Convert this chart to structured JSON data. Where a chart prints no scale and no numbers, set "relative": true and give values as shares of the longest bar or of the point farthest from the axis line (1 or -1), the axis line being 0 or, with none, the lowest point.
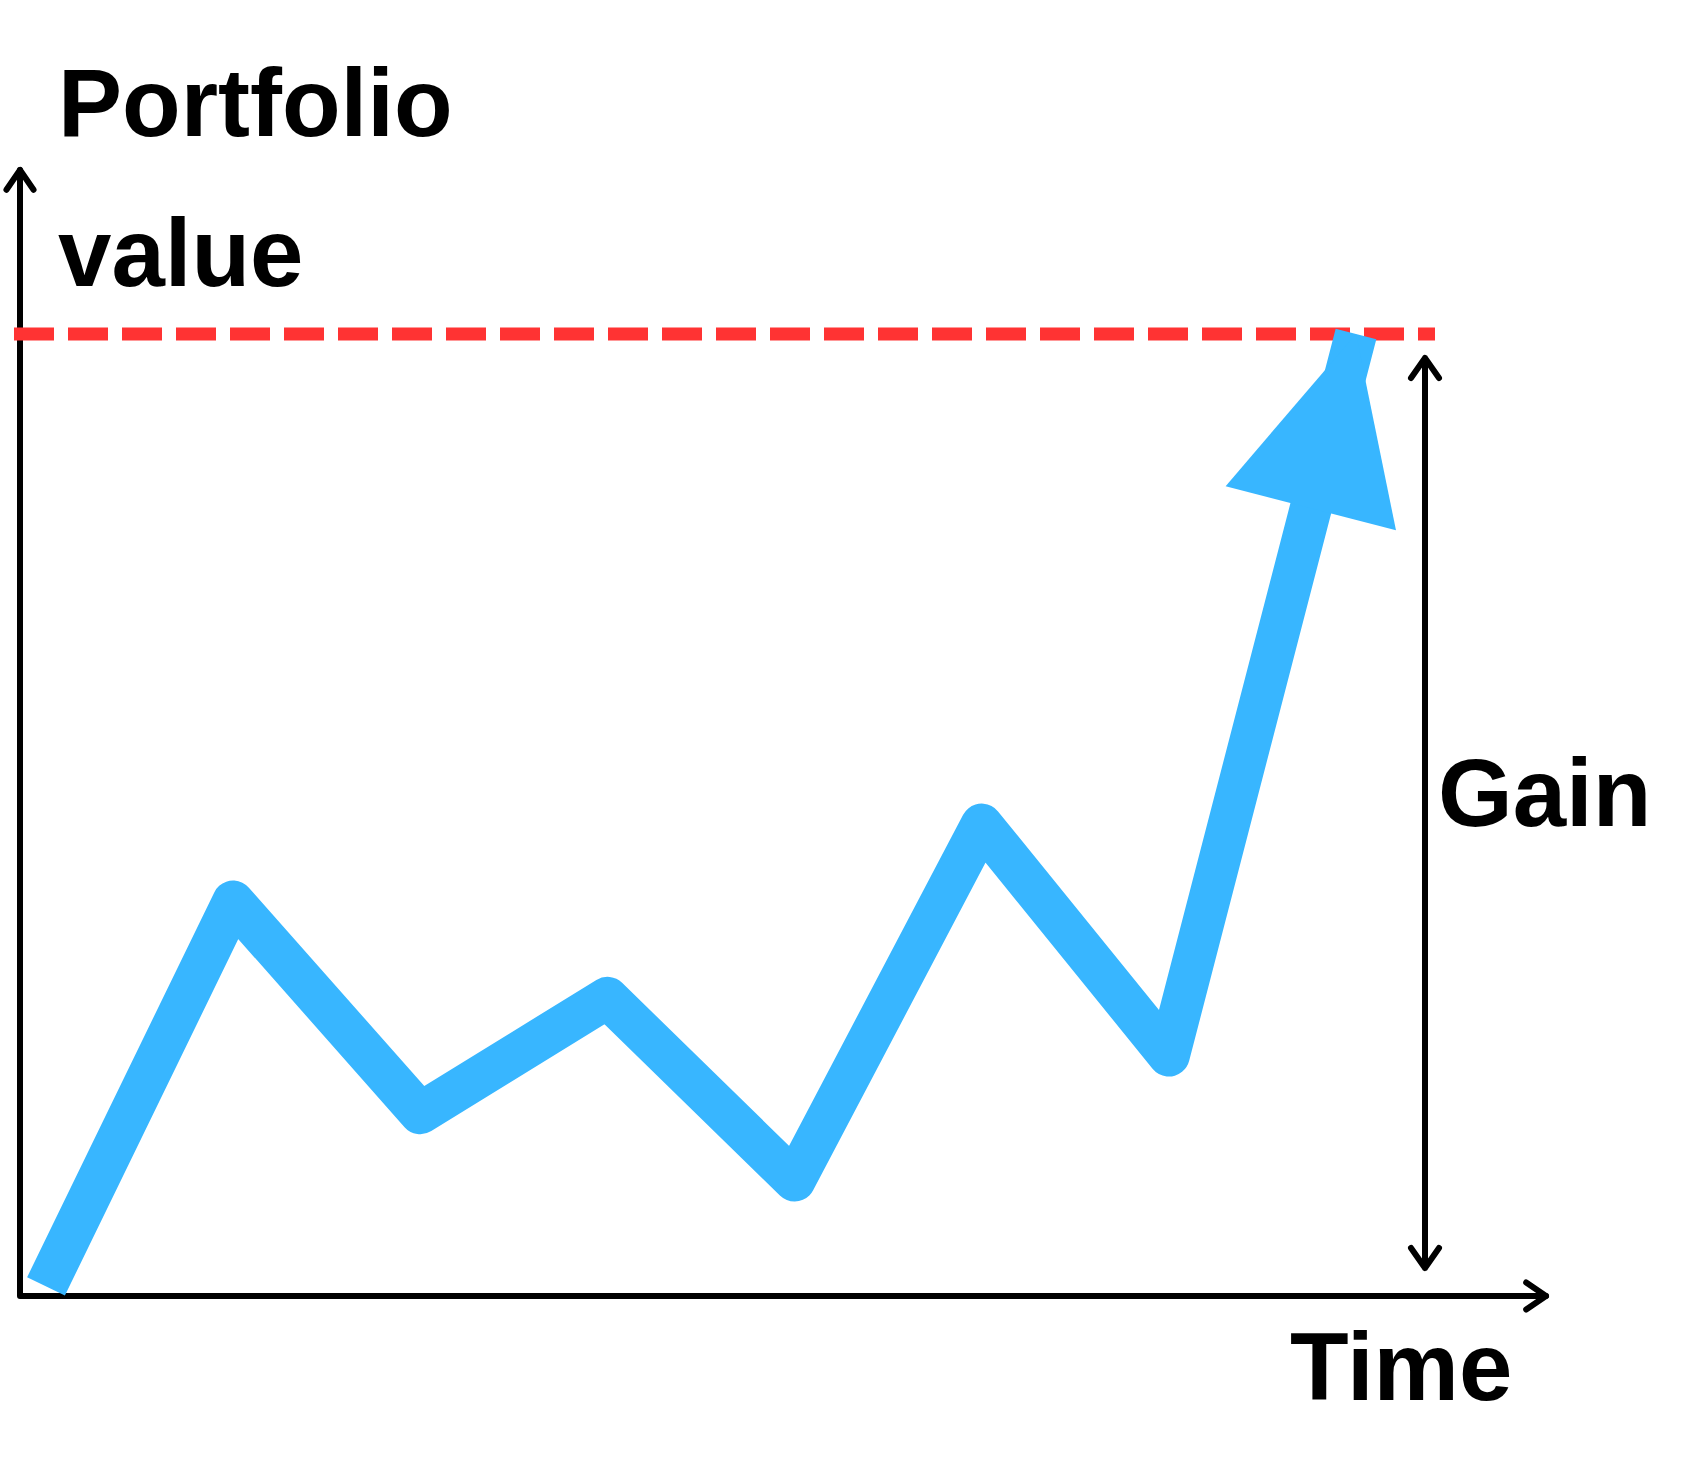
{
  "chart_data": {
    "type": "line",
    "xlabel": "Time",
    "ylabel": "Portfolio value",
    "annotations": [
      "Gain"
    ],
    "categories": [
      null,
      null,
      null,
      null,
      null,
      null,
      null,
      null
    ],
    "series": [
      {
        "color": "#38b6ff",
        "values": [
          0.01,
          0.41,
          0.19,
          0.31,
          0.12,
          0.49,
          0.25,
          1
        ]
      }
    ],
    "relative": true,
    "marker": "none",
    "line_style": "solid",
    "ref_lines": [
      {
        "axis": "y",
        "value": 1,
        "color": "#ff3333",
        "line_style": "dashed"
      }
    ]
  }
}
